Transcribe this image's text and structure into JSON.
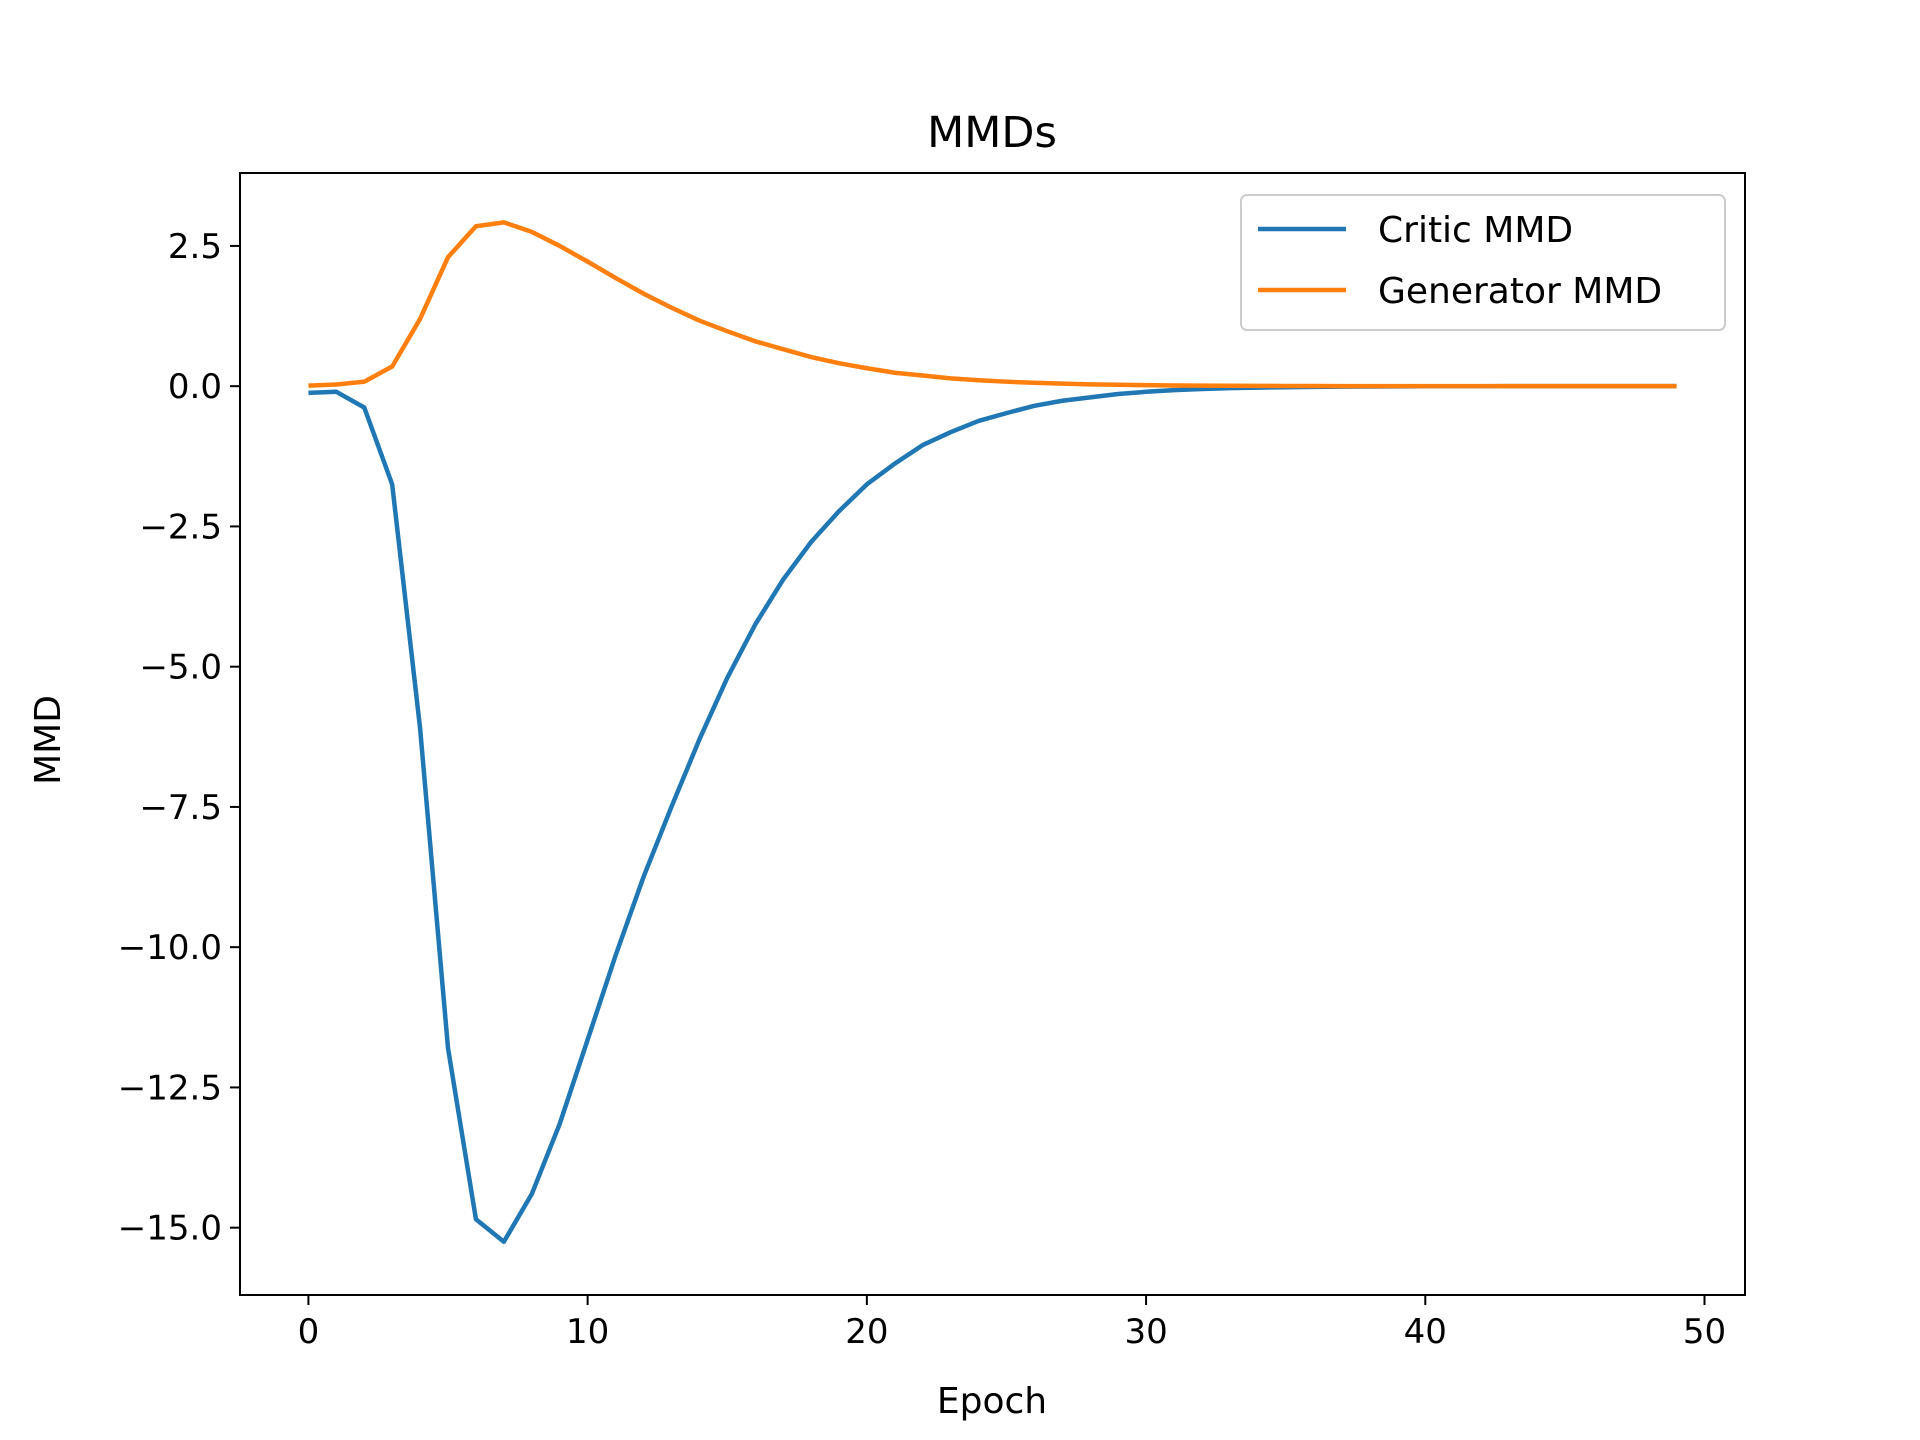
{
  "chart_data": {
    "type": "line",
    "title": "MMDs",
    "xlabel": "Epoch",
    "ylabel": "MMD",
    "xlim": [
      -2.45,
      51.45
    ],
    "ylim": [
      -16.2,
      3.8
    ],
    "xticks": [
      0,
      10,
      20,
      30,
      40,
      50
    ],
    "xtick_labels": [
      "0",
      "10",
      "20",
      "30",
      "40",
      "50"
    ],
    "yticks": [
      2.5,
      0,
      -2.5,
      -5,
      -7.5,
      -10,
      -12.5,
      -15
    ],
    "ytick_labels": [
      "2.5",
      "0.0",
      "−2.5",
      "−5.0",
      "−7.5",
      "−10.0",
      "−12.5",
      "−15.0"
    ],
    "grid": false,
    "legend_position": "upper right",
    "x": [
      0,
      1,
      2,
      3,
      4,
      5,
      6,
      7,
      8,
      9,
      10,
      11,
      12,
      13,
      14,
      15,
      16,
      17,
      18,
      19,
      20,
      21,
      22,
      23,
      24,
      25,
      26,
      27,
      28,
      29,
      30,
      31,
      32,
      33,
      34,
      35,
      36,
      37,
      38,
      39,
      40,
      41,
      42,
      43,
      44,
      45,
      46,
      47,
      48,
      49
    ],
    "series": [
      {
        "name": "Critic MMD",
        "color": "#1f77b4",
        "values": [
          -0.12,
          -0.1,
          -0.38,
          -1.75,
          -6.1,
          -11.8,
          -14.85,
          -15.25,
          -14.4,
          -13.15,
          -11.65,
          -10.15,
          -8.75,
          -7.5,
          -6.3,
          -5.2,
          -4.25,
          -3.45,
          -2.78,
          -2.23,
          -1.75,
          -1.38,
          -1.05,
          -0.82,
          -0.62,
          -0.48,
          -0.35,
          -0.26,
          -0.2,
          -0.14,
          -0.1,
          -0.07,
          -0.05,
          -0.035,
          -0.025,
          -0.018,
          -0.012,
          -0.008,
          -0.005,
          -0.003,
          -0.002,
          -0.001,
          -0.001,
          0,
          0,
          0,
          0,
          0,
          0,
          0
        ]
      },
      {
        "name": "Generator MMD",
        "color": "#ff7f0e",
        "values": [
          0.01,
          0.03,
          0.08,
          0.35,
          1.2,
          2.3,
          2.85,
          2.92,
          2.75,
          2.5,
          2.22,
          1.93,
          1.65,
          1.4,
          1.17,
          0.98,
          0.8,
          0.66,
          0.52,
          0.41,
          0.32,
          0.24,
          0.19,
          0.14,
          0.105,
          0.08,
          0.06,
          0.045,
          0.033,
          0.025,
          0.018,
          0.013,
          0.01,
          0.007,
          0.005,
          0.004,
          0.003,
          0.002,
          0.002,
          0.001,
          0.001,
          0.001,
          0.001,
          0,
          0,
          0,
          0,
          0,
          0,
          0
        ]
      }
    ]
  }
}
